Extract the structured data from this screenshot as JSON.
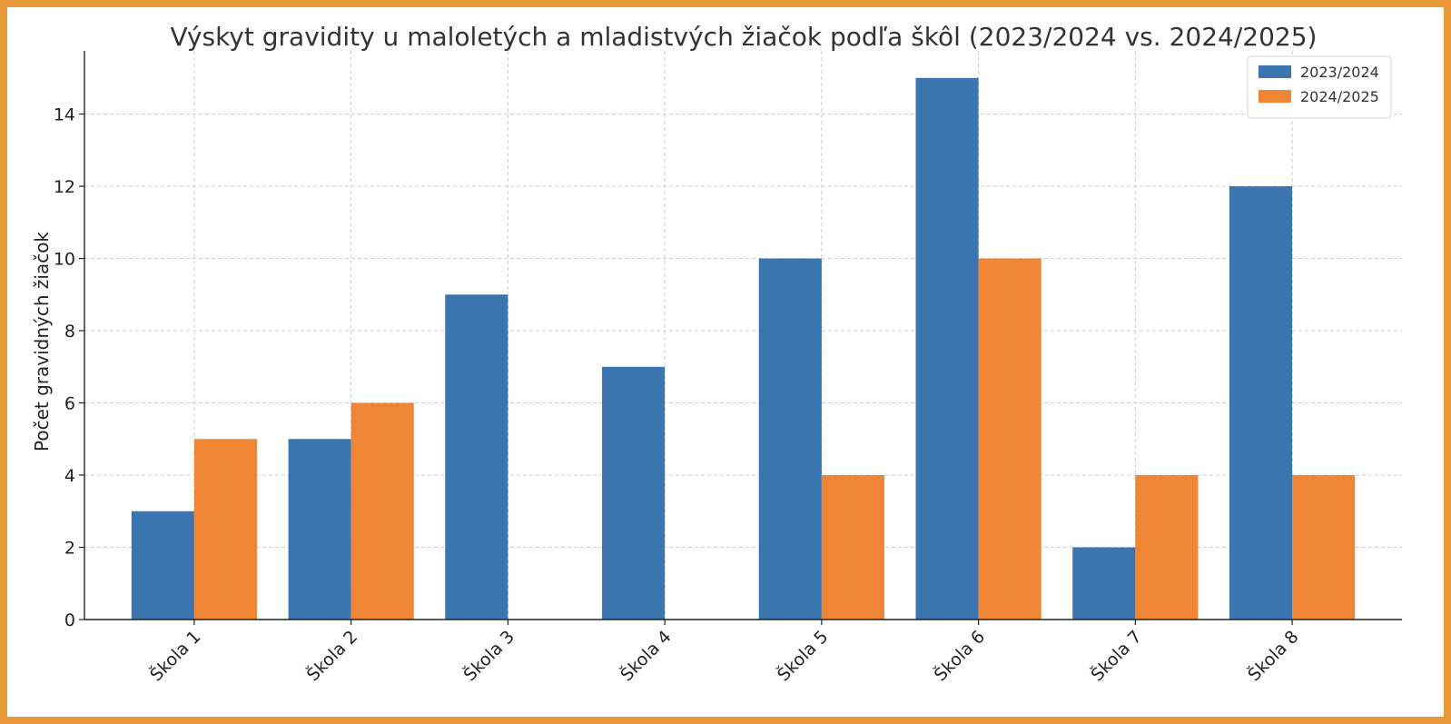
{
  "chart_data": {
    "type": "bar",
    "title": "Výskyt gravidity u maloletých a mladistvých žiačok podľa škôl (2023/2024 vs. 2024/2025)",
    "xlabel": "",
    "ylabel": "Počet gravidných žiačok",
    "categories": [
      "Škola 1",
      "Škola 2",
      "Škola 3",
      "Škola 4",
      "Škola 5",
      "Škola 6",
      "Škola 7",
      "Škola 8"
    ],
    "series": [
      {
        "name": "2023/2024",
        "color": "#3B75AF",
        "values": [
          3,
          5,
          9,
          7,
          10,
          15,
          2,
          12
        ]
      },
      {
        "name": "2024/2025",
        "color": "#EF8636",
        "values": [
          5,
          6,
          0,
          0,
          4,
          10,
          4,
          4
        ]
      }
    ],
    "ylim": [
      0,
      15.75
    ],
    "yticks": [
      0,
      2,
      4,
      6,
      8,
      10,
      12,
      14
    ],
    "grid": true,
    "legend_position": "top-right"
  }
}
